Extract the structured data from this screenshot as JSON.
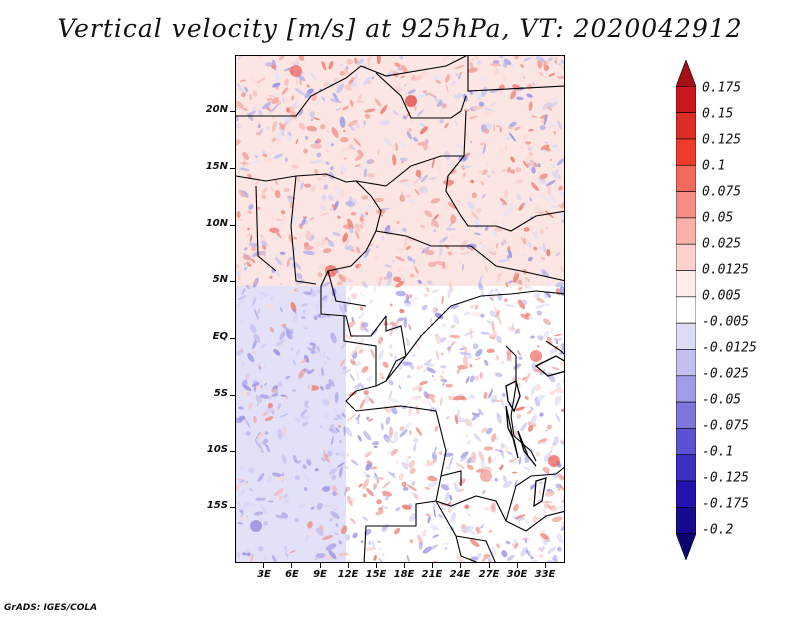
{
  "title": "Vertical velocity [m/s] at 925hPa, VT: 2020042912",
  "footer": "GrADS: IGES/COLA",
  "map": {
    "lat_labels": [
      "20N",
      "15N",
      "10N",
      "5N",
      "EQ",
      "5S",
      "10S",
      "15S"
    ],
    "lat_values": [
      20,
      15,
      10,
      5,
      0,
      -5,
      -10,
      -15
    ],
    "lon_labels": [
      "3E",
      "6E",
      "9E",
      "12E",
      "15E",
      "18E",
      "21E",
      "24E",
      "27E",
      "30E",
      "33E"
    ],
    "lon_values": [
      3,
      6,
      9,
      12,
      15,
      18,
      21,
      24,
      27,
      30,
      33
    ],
    "extent": {
      "lon_min": 0.5,
      "lon_max": 35.5,
      "lat_min": -19.8,
      "lat_max": 24.5
    }
  },
  "colorbar": {
    "labels": [
      "0.175",
      "0.15",
      "0.125",
      "0.1",
      "0.075",
      "0.05",
      "0.025",
      "0.0125",
      "0.005",
      "-0.005",
      "-0.0125",
      "-0.025",
      "-0.05",
      "-0.075",
      "-0.1",
      "-0.125",
      "-0.175",
      "-0.2"
    ],
    "colors": [
      "#a50f15",
      "#cb181d",
      "#de2d26",
      "#ef3b2c",
      "#f26a5a",
      "#f58d84",
      "#f9b1aa",
      "#fcd0cc",
      "#fdecea",
      "#ffffff",
      "#dddcf5",
      "#c3c0f0",
      "#a19ce8",
      "#7d76dd",
      "#5a52d2",
      "#3a30c4",
      "#2413b0",
      "#160a8f",
      "#0c0670"
    ],
    "over_color": "#a50f15",
    "under_color": "#0c0670"
  }
}
